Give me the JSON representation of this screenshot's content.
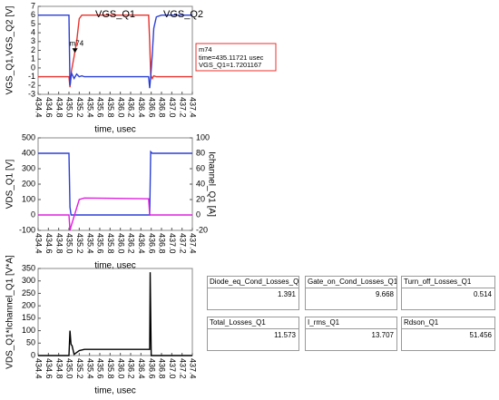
{
  "chart_data": [
    {
      "type": "line",
      "ylabel": "VGS_Q1,VGS_Q2 [V]",
      "xlabel": "time, usec",
      "legend": "top",
      "x": [
        434.4,
        435.0,
        435.02,
        435.05,
        435.1,
        435.15,
        435.2,
        435.25,
        435.3,
        436.55,
        436.57,
        436.59,
        436.62,
        436.65,
        436.7,
        436.8,
        437.4
      ],
      "series": [
        {
          "name": "VGS_Q1",
          "color": "#e8322c",
          "values": [
            -1,
            -1,
            -2.2,
            -0.3,
            1.3,
            3,
            5.6,
            6,
            6,
            6,
            3,
            -0.8,
            -1.2,
            -0.9,
            -1,
            -1,
            -1
          ]
        },
        {
          "name": "VGS_Q2",
          "color": "#2a3fd6",
          "values": [
            6,
            6,
            -2,
            -0.6,
            -1.2,
            -0.7,
            -1,
            -0.9,
            -1,
            -1,
            -2.3,
            -1,
            1.5,
            4.5,
            5.8,
            6,
            6
          ]
        }
      ],
      "xlim": [
        434.4,
        437.4
      ],
      "xticks": [
        434.4,
        434.6,
        434.8,
        {
          "value": 435,
          "label": "435.0"
        },
        435.2,
        435.4,
        435.6,
        435.8,
        {
          "value": 436,
          "label": "436.0"
        },
        436.2,
        436.4,
        436.6,
        436.8,
        {
          "value": 437,
          "label": "437.0"
        },
        437.2,
        437.4
      ],
      "ylim": [
        -3,
        7
      ],
      "yticks": [
        -3,
        -2,
        -1,
        0,
        1,
        2,
        3,
        4,
        5,
        6,
        7
      ],
      "marker": {
        "name": "m74",
        "x": 435.11721,
        "y": 1.7201167,
        "lines": [
          "time=435.11721 usec",
          "VGS_Q1=1.7201167"
        ]
      }
    },
    {
      "type": "line",
      "ylabel": "VDS_Q1 [V]",
      "y2label": "Ichannel_Q1 [A]",
      "xlabel": "time, usec",
      "x": [
        434.4,
        435.0,
        435.02,
        435.04,
        435.2,
        435.3,
        436.55,
        436.57,
        436.59,
        436.62,
        437.4
      ],
      "series": [
        {
          "name": "VDS_Q1",
          "color": "#2a3fd6",
          "values": [
            400,
            400,
            50,
            0,
            0,
            0,
            0,
            0,
            410,
            400,
            400
          ]
        },
        {
          "name": "Ichannel_Q1",
          "color": "#e020e0",
          "axis": "y2",
          "values": [
            0,
            0,
            -20,
            -15,
            20,
            22,
            21,
            0,
            0,
            0,
            0
          ]
        }
      ],
      "xlim": [
        434.4,
        437.4
      ],
      "xticks": [
        434.4,
        434.6,
        434.8,
        {
          "value": 435,
          "label": "435.0"
        },
        435.2,
        435.4,
        435.6,
        435.8,
        {
          "value": 436,
          "label": "436.0"
        },
        436.2,
        436.4,
        436.6,
        436.8,
        {
          "value": 437,
          "label": "437.0"
        },
        437.2,
        437.4
      ],
      "ylim": [
        -100,
        500
      ],
      "yticks": [
        -100,
        0,
        100,
        200,
        300,
        400,
        500
      ],
      "y2lim": [
        -20,
        100
      ],
      "y2ticks": [
        -20,
        0,
        20,
        40,
        60,
        80,
        100
      ]
    },
    {
      "type": "line",
      "ylabel": "VDS_Q1*Ichannel_Q1 [V*A]",
      "xlabel": "time, usec",
      "x": [
        434.4,
        435.0,
        435.02,
        435.04,
        435.06,
        435.1,
        435.2,
        435.3,
        436.55,
        436.57,
        436.58,
        436.6,
        437.4
      ],
      "series": [
        {
          "name": "VDS_Q1*Ichannel_Q1",
          "color": "#000000",
          "values": [
            0,
            0,
            100,
            45,
            40,
            5,
            20,
            25,
            25,
            25,
            335,
            0,
            0
          ]
        }
      ],
      "xlim": [
        434.4,
        437.4
      ],
      "xticks": [
        434.4,
        434.6,
        434.8,
        {
          "value": 435,
          "label": "435.0"
        },
        435.2,
        435.4,
        435.6,
        435.8,
        {
          "value": 436,
          "label": "436.0"
        },
        436.2,
        436.4,
        436.6,
        436.8,
        {
          "value": 437,
          "label": "437.0"
        },
        437.2,
        437.4
      ],
      "ylim": [
        0,
        350
      ],
      "yticks": [
        0,
        50,
        100,
        150,
        200,
        250,
        300,
        350
      ]
    }
  ],
  "tables": [
    [
      {
        "header": "Diode_eq_Cond_Losses_Q1",
        "value": 1.391
      },
      {
        "header": "Gate_on_Cond_Losses_Q1",
        "value": 9.668
      },
      {
        "header": "Turn_off_Losses_Q1",
        "value": 0.514
      }
    ],
    [
      {
        "header": "Total_Losses_Q1",
        "value": 11.573
      },
      {
        "header": "I_rms_Q1",
        "value": 13.707
      },
      {
        "header": "Rdson_Q1",
        "value": 51.456
      }
    ]
  ]
}
